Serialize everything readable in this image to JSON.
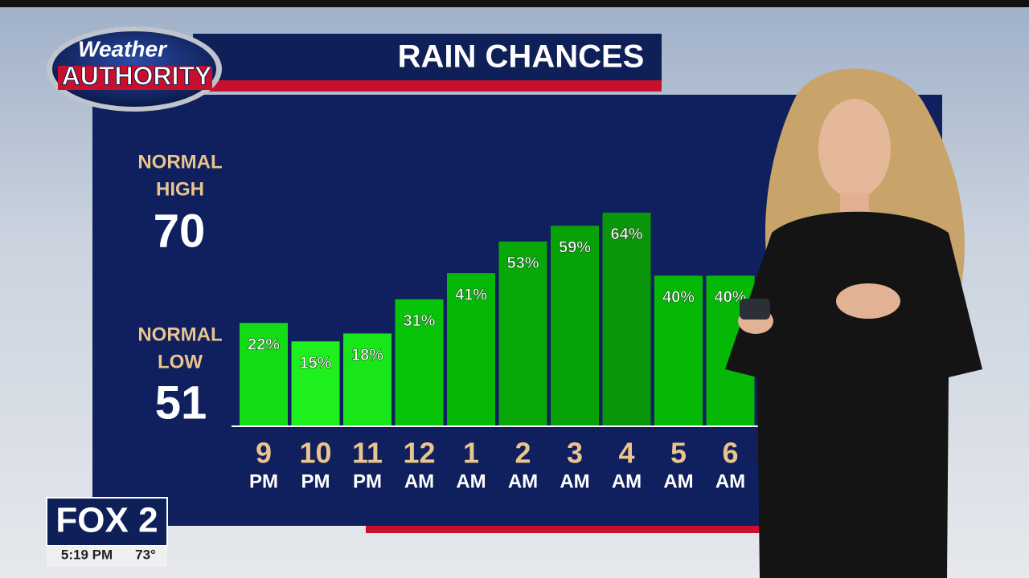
{
  "chart_data": {
    "type": "bar",
    "title": "RAIN CHANCES",
    "categories": [
      "9",
      "10",
      "11",
      "12",
      "1",
      "2",
      "3",
      "4",
      "5",
      "6"
    ],
    "periods": [
      "PM",
      "PM",
      "PM",
      "AM",
      "AM",
      "AM",
      "AM",
      "AM",
      "AM",
      "AM"
    ],
    "values": [
      22,
      15,
      18,
      31,
      41,
      53,
      59,
      64,
      40,
      40
    ],
    "value_labels": [
      "22%",
      "15%",
      "18%",
      "31%",
      "41%",
      "53%",
      "59%",
      "64%",
      "40%",
      "40%"
    ],
    "colors": [
      "#14dc14",
      "#1ef01e",
      "#18e618",
      "#08c408",
      "#06b806",
      "#08a808",
      "#07a207",
      "#0a960a",
      "#06b806",
      "#06b806"
    ],
    "ylim": [
      -17,
      100
    ]
  },
  "logo": {
    "line1": "Weather",
    "line2": "AUTHORITY"
  },
  "normal_high": {
    "label1": "NORMAL",
    "label2": "HIGH",
    "value": "70"
  },
  "normal_low": {
    "label1": "NORMAL",
    "label2": "LOW",
    "value": "51"
  },
  "station": {
    "name": "FOX 2",
    "time": "5:19 PM",
    "temperature": "73°"
  }
}
